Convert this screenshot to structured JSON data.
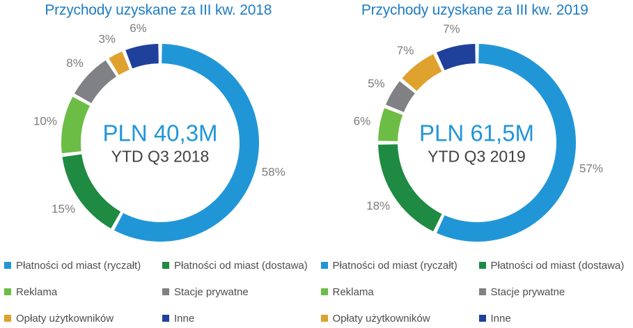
{
  "styles": {
    "title_color": "#1F7CC4",
    "center_value_color": "#2196D7",
    "center_label_color": "#404040",
    "data_label_color": "#7C7C7C",
    "legend_text_color": "#4D4D4D",
    "background_color": "#FFFFFF"
  },
  "chart_data": [
    {
      "type": "pie",
      "subtype": "donut",
      "title": "Przychody uzyskane za III kw. 2018",
      "center_value": "PLN 40,3M",
      "center_label": "YTD Q3 2018",
      "categories": [
        "Płatności od miast (ryczałt)",
        "Płatności od miast (dostawa)",
        "Reklama",
        "Stacje prywatne",
        "Opłaty użytkowników",
        "Inne"
      ],
      "values": [
        58,
        15,
        10,
        8,
        3,
        6
      ],
      "unit": "%",
      "data_labels": [
        "58%",
        "15%",
        "10%",
        "8%",
        "3%",
        "6%"
      ],
      "colors": [
        "#2196D7",
        "#1E8A42",
        "#6CBD45",
        "#7F8184",
        "#E0A22E",
        "#1F419B"
      ],
      "start_angle_deg": 0,
      "direction": "clockwise",
      "legend_position": "bottom"
    },
    {
      "type": "pie",
      "subtype": "donut",
      "title": "Przychody uzyskane za III kw. 2019",
      "center_value": "PLN 61,5M",
      "center_label": "YTD Q3 2019",
      "categories": [
        "Płatności od miast (ryczałt)",
        "Płatności od miast (dostawa)",
        "Reklama",
        "Stacje prywatne",
        "Opłaty użytkowników",
        "Inne"
      ],
      "values": [
        57,
        18,
        6,
        5,
        7,
        7
      ],
      "unit": "%",
      "data_labels": [
        "57%",
        "18%",
        "6%",
        "5%",
        "7%",
        "7%"
      ],
      "colors": [
        "#2196D7",
        "#1E8A42",
        "#6CBD45",
        "#7F8184",
        "#E0A22E",
        "#1F419B"
      ],
      "start_angle_deg": 0,
      "direction": "clockwise",
      "legend_position": "bottom"
    }
  ]
}
